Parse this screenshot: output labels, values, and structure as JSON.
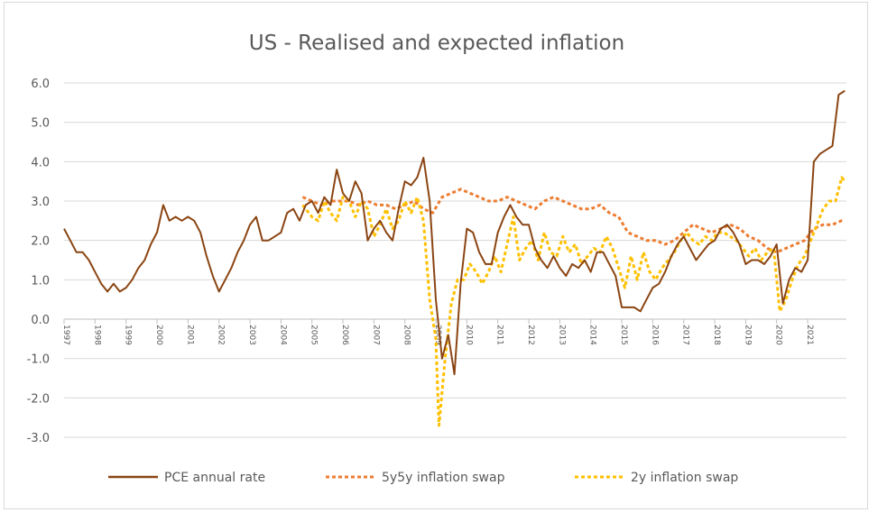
{
  "chart_data": {
    "type": "line",
    "title": "US - Realised and expected inflation",
    "xlabel": "",
    "ylabel": "",
    "ylim": [
      -3.0,
      6.0
    ],
    "yticks": [
      "6.0",
      "5.0",
      "4.0",
      "3.0",
      "2.0",
      "1.0",
      "0.0",
      "-1.0",
      "-2.0",
      "-3.0"
    ],
    "ytick_values": [
      6,
      5,
      4,
      3,
      2,
      1,
      0,
      -1,
      -2,
      -3
    ],
    "xlim": [
      1997.0,
      2022.25
    ],
    "xticks": [
      "1997",
      "1998",
      "1999",
      "2000",
      "2001",
      "2002",
      "2003",
      "2004",
      "2005",
      "2006",
      "2007",
      "2008",
      "2009",
      "2010",
      "2011",
      "2012",
      "2013",
      "2014",
      "2015",
      "2016",
      "2017",
      "2018",
      "2019",
      "2020",
      "2021"
    ],
    "legend_position": "bottom",
    "gridlines": "horizontal",
    "series": [
      {
        "name": "PCE annual rate",
        "color": "#8B4513",
        "dash": "solid",
        "x": [
          1997.0,
          1997.2,
          1997.4,
          1997.6,
          1997.8,
          1998.0,
          1998.2,
          1998.4,
          1998.6,
          1998.8,
          1999.0,
          1999.2,
          1999.4,
          1999.6,
          1999.8,
          2000.0,
          2000.2,
          2000.4,
          2000.6,
          2000.8,
          2001.0,
          2001.2,
          2001.4,
          2001.6,
          2001.8,
          2002.0,
          2002.2,
          2002.4,
          2002.6,
          2002.8,
          2003.0,
          2003.2,
          2003.4,
          2003.6,
          2003.8,
          2004.0,
          2004.2,
          2004.4,
          2004.6,
          2004.8,
          2005.0,
          2005.2,
          2005.4,
          2005.6,
          2005.8,
          2006.0,
          2006.2,
          2006.4,
          2006.6,
          2006.8,
          2007.0,
          2007.2,
          2007.4,
          2007.6,
          2007.8,
          2008.0,
          2008.2,
          2008.4,
          2008.6,
          2008.8,
          2009.0,
          2009.2,
          2009.4,
          2009.6,
          2009.8,
          2010.0,
          2010.2,
          2010.4,
          2010.6,
          2010.8,
          2011.0,
          2011.2,
          2011.4,
          2011.6,
          2011.8,
          2012.0,
          2012.2,
          2012.4,
          2012.6,
          2012.8,
          2013.0,
          2013.2,
          2013.4,
          2013.6,
          2013.8,
          2014.0,
          2014.2,
          2014.4,
          2014.6,
          2014.8,
          2015.0,
          2015.2,
          2015.4,
          2015.6,
          2015.8,
          2016.0,
          2016.2,
          2016.4,
          2016.6,
          2016.8,
          2017.0,
          2017.2,
          2017.4,
          2017.6,
          2017.8,
          2018.0,
          2018.2,
          2018.4,
          2018.6,
          2018.8,
          2019.0,
          2019.2,
          2019.4,
          2019.6,
          2019.8,
          2020.0,
          2020.2,
          2020.4,
          2020.6,
          2020.8,
          2021.0,
          2021.2,
          2021.4,
          2021.6,
          2021.8,
          2022.0,
          2022.2
        ],
        "values": [
          2.3,
          2.0,
          1.7,
          1.7,
          1.5,
          1.2,
          0.9,
          0.7,
          0.9,
          0.7,
          0.8,
          1.0,
          1.3,
          1.5,
          1.9,
          2.2,
          2.9,
          2.5,
          2.6,
          2.5,
          2.6,
          2.5,
          2.2,
          1.6,
          1.1,
          0.7,
          1.0,
          1.3,
          1.7,
          2.0,
          2.4,
          2.6,
          2.0,
          2.0,
          2.1,
          2.2,
          2.7,
          2.8,
          2.5,
          2.9,
          3.0,
          2.7,
          3.1,
          2.9,
          3.8,
          3.2,
          3.0,
          3.5,
          3.2,
          2.0,
          2.3,
          2.5,
          2.2,
          2.0,
          2.8,
          3.5,
          3.4,
          3.6,
          4.1,
          3.0,
          0.5,
          -1.0,
          -0.4,
          -1.4,
          0.9,
          2.3,
          2.2,
          1.7,
          1.4,
          1.4,
          2.2,
          2.6,
          2.9,
          2.6,
          2.4,
          2.4,
          1.8,
          1.5,
          1.3,
          1.6,
          1.3,
          1.1,
          1.4,
          1.3,
          1.5,
          1.2,
          1.7,
          1.7,
          1.4,
          1.1,
          0.3,
          0.3,
          0.3,
          0.2,
          0.5,
          0.8,
          0.9,
          1.2,
          1.6,
          1.9,
          2.1,
          1.8,
          1.5,
          1.7,
          1.9,
          2.0,
          2.3,
          2.4,
          2.2,
          1.9,
          1.4,
          1.5,
          1.5,
          1.4,
          1.6,
          1.9,
          0.4,
          1.0,
          1.3,
          1.2,
          1.5,
          4.0,
          4.2,
          4.3,
          4.4,
          5.7,
          5.8
        ]
      },
      {
        "name": "5y5y inflation swap",
        "color": "#ED7D31",
        "dash": "4,3",
        "x": [
          2004.7,
          2005.0,
          2005.3,
          2005.6,
          2005.9,
          2006.2,
          2006.5,
          2006.8,
          2007.1,
          2007.4,
          2007.7,
          2008.0,
          2008.3,
          2008.6,
          2008.9,
          2009.2,
          2009.5,
          2009.8,
          2010.1,
          2010.4,
          2010.7,
          2011.0,
          2011.3,
          2011.6,
          2011.9,
          2012.2,
          2012.5,
          2012.8,
          2013.1,
          2013.4,
          2013.7,
          2014.0,
          2014.3,
          2014.6,
          2014.9,
          2015.2,
          2015.5,
          2015.8,
          2016.1,
          2016.4,
          2016.7,
          2017.0,
          2017.3,
          2017.6,
          2017.9,
          2018.2,
          2018.5,
          2018.8,
          2019.1,
          2019.4,
          2019.7,
          2020.0,
          2020.3,
          2020.6,
          2020.9,
          2021.2,
          2021.5,
          2021.8,
          2022.1,
          2022.2
        ],
        "values": [
          3.1,
          3.0,
          2.9,
          3.0,
          3.0,
          3.0,
          2.9,
          3.0,
          2.9,
          2.9,
          2.8,
          2.9,
          3.0,
          2.8,
          2.7,
          3.1,
          3.2,
          3.3,
          3.2,
          3.1,
          3.0,
          3.0,
          3.1,
          3.0,
          2.9,
          2.8,
          3.0,
          3.1,
          3.0,
          2.9,
          2.8,
          2.8,
          2.9,
          2.7,
          2.6,
          2.2,
          2.1,
          2.0,
          2.0,
          1.9,
          2.0,
          2.2,
          2.4,
          2.3,
          2.2,
          2.3,
          2.4,
          2.3,
          2.1,
          2.0,
          1.8,
          1.7,
          1.8,
          1.9,
          2.0,
          2.3,
          2.4,
          2.4,
          2.5,
          2.5
        ]
      },
      {
        "name": "2y inflation swap",
        "color": "#FFC000",
        "dash": "4,3",
        "x": [
          2004.7,
          2005.0,
          2005.2,
          2005.4,
          2005.6,
          2005.8,
          2006.0,
          2006.2,
          2006.4,
          2006.6,
          2006.8,
          2007.0,
          2007.2,
          2007.4,
          2007.6,
          2007.8,
          2008.0,
          2008.2,
          2008.4,
          2008.6,
          2008.8,
          2009.0,
          2009.1,
          2009.3,
          2009.5,
          2009.7,
          2009.9,
          2010.1,
          2010.3,
          2010.5,
          2010.7,
          2010.9,
          2011.1,
          2011.3,
          2011.5,
          2011.7,
          2011.9,
          2012.1,
          2012.3,
          2012.5,
          2012.7,
          2012.9,
          2013.1,
          2013.3,
          2013.5,
          2013.7,
          2013.9,
          2014.1,
          2014.3,
          2014.5,
          2014.7,
          2014.9,
          2015.1,
          2015.3,
          2015.5,
          2015.7,
          2015.9,
          2016.1,
          2016.3,
          2016.5,
          2016.7,
          2016.9,
          2017.1,
          2017.3,
          2017.5,
          2017.7,
          2017.9,
          2018.1,
          2018.3,
          2018.5,
          2018.7,
          2018.9,
          2019.1,
          2019.3,
          2019.5,
          2019.7,
          2019.9,
          2020.1,
          2020.3,
          2020.5,
          2020.7,
          2020.9,
          2021.1,
          2021.3,
          2021.5,
          2021.7,
          2021.9,
          2022.1,
          2022.2
        ],
        "values": [
          2.9,
          2.6,
          2.5,
          3.0,
          2.7,
          2.5,
          3.1,
          3.0,
          2.6,
          3.0,
          2.8,
          2.1,
          2.4,
          2.8,
          2.3,
          2.5,
          3.0,
          2.7,
          3.1,
          2.5,
          0.5,
          -0.5,
          -2.7,
          -1.0,
          0.4,
          1.0,
          1.0,
          1.4,
          1.2,
          0.9,
          1.2,
          1.6,
          1.2,
          1.9,
          2.6,
          1.5,
          1.8,
          2.0,
          1.5,
          2.2,
          1.7,
          1.6,
          2.1,
          1.7,
          1.9,
          1.4,
          1.6,
          1.8,
          1.7,
          2.1,
          1.8,
          1.3,
          0.8,
          1.6,
          1.0,
          1.7,
          1.2,
          1.0,
          1.3,
          1.5,
          1.7,
          2.0,
          2.2,
          2.0,
          1.9,
          2.1,
          2.0,
          2.2,
          2.2,
          2.1,
          2.0,
          1.8,
          1.6,
          1.8,
          1.5,
          1.7,
          1.8,
          0.2,
          0.5,
          1.0,
          1.4,
          1.6,
          2.0,
          2.4,
          2.8,
          3.0,
          3.0,
          3.6,
          3.5
        ]
      }
    ]
  }
}
